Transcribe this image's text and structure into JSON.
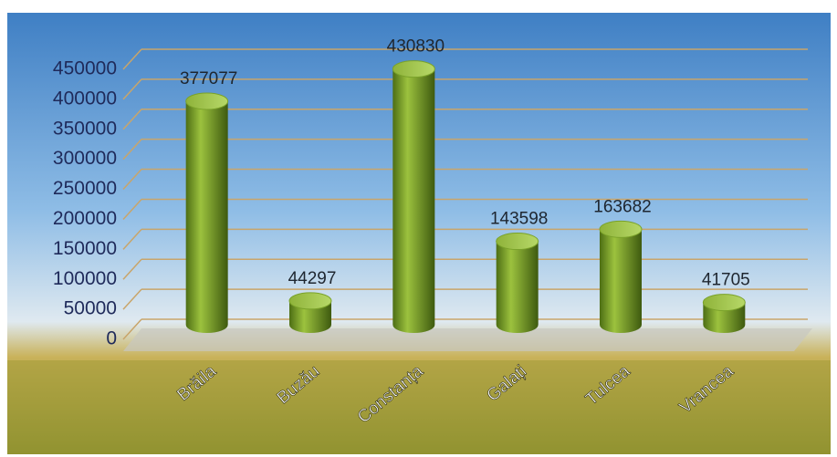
{
  "chart_data": {
    "type": "bar",
    "categories": [
      "Brăila",
      "Buzău",
      "Constanța",
      "Galați",
      "Tulcea",
      "Vrancea"
    ],
    "values": [
      377077,
      44297,
      430830,
      143598,
      163682,
      41705
    ],
    "color": "#7aa22a",
    "ylim": [
      0,
      450000
    ],
    "yticks": [
      0,
      50000,
      100000,
      150000,
      200000,
      250000,
      300000,
      350000,
      400000,
      450000
    ],
    "grid": true
  }
}
